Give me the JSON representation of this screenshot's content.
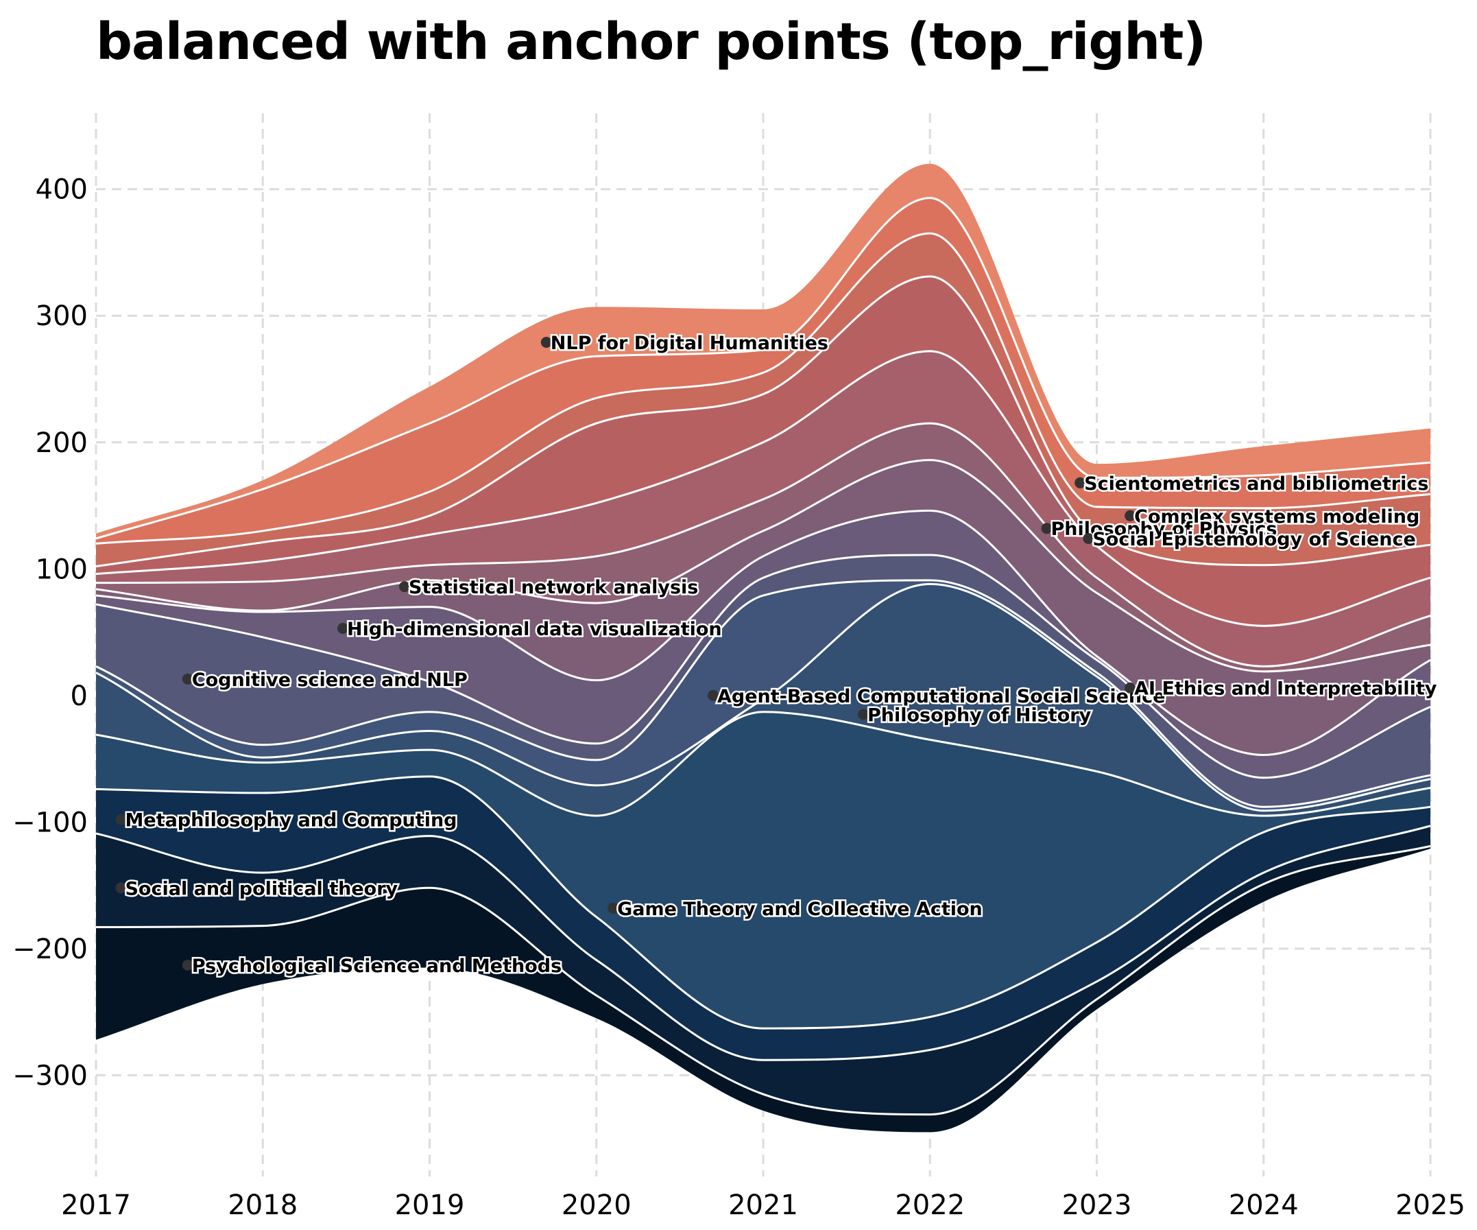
{
  "chart_data": {
    "type": "area",
    "title": "balanced with anchor points (top_right)",
    "xlabel": "",
    "ylabel": "",
    "x": [
      2017,
      2018,
      2019,
      2020,
      2021,
      2022,
      2023,
      2024,
      2025
    ],
    "xlim": [
      2017,
      2025
    ],
    "ylim": [
      -380,
      460
    ],
    "yticks": [
      -300,
      -200,
      -100,
      0,
      100,
      200,
      300,
      400
    ],
    "grid": true,
    "boundaries": [
      [
        -272,
        -228,
        -215,
        -255,
        -328,
        -345,
        -248,
        -163,
        -121
      ],
      [
        -183,
        -182,
        -152,
        -237,
        -315,
        -331,
        -240,
        -149,
        -119
      ],
      [
        -109,
        -140,
        -111,
        -209,
        -288,
        -280,
        -226,
        -140,
        -103
      ],
      [
        -74,
        -77,
        -64,
        -175,
        -263,
        -254,
        -195,
        -108,
        -88
      ],
      [
        -31,
        -53,
        -43,
        -95,
        -13,
        -35,
        -60,
        -95,
        -73
      ],
      [
        18,
        -49,
        -28,
        -71,
        -3,
        88,
        15,
        -91,
        -66
      ],
      [
        23,
        -39,
        -13,
        -51,
        79,
        91,
        18,
        -88,
        -63
      ],
      [
        72,
        46,
        11,
        -38,
        93,
        111,
        28,
        -65,
        -9
      ],
      [
        79,
        66,
        70,
        12,
        110,
        146,
        31,
        -47,
        28
      ],
      [
        84,
        67,
        91,
        73,
        130,
        186,
        81,
        19,
        40
      ],
      [
        89,
        90,
        103,
        110,
        155,
        215,
        93,
        23,
        63
      ],
      [
        96,
        106,
        127,
        152,
        200,
        272,
        118,
        55,
        93
      ],
      [
        102,
        121,
        142,
        215,
        238,
        331,
        127,
        103,
        119
      ],
      [
        120,
        130,
        161,
        235,
        255,
        365,
        149,
        148,
        159
      ],
      [
        124,
        163,
        215,
        268,
        273,
        393,
        172,
        174,
        184
      ],
      [
        128,
        170,
        244,
        307,
        305,
        420,
        183,
        197,
        211
      ]
    ],
    "series_colors": [
      "#041424",
      "#0a2039",
      "#102e4f",
      "#264a6c",
      "#334f72",
      "#41557a",
      "#555879",
      "#695b79",
      "#7e5d77",
      "#8f5f72",
      "#a5606c",
      "#b76062",
      "#c86a5c",
      "#da725e",
      "#e68569",
      "#e89a73"
    ],
    "labels": [
      {
        "text": "NLP for Digital Humanities",
        "x": 2019.7,
        "y": 279
      },
      {
        "text": "Statistical network analysis",
        "x": 2018.85,
        "y": 86
      },
      {
        "text": "High-dimensional data visualization",
        "x": 2018.48,
        "y": 53
      },
      {
        "text": "Cognitive science and NLP",
        "x": 2017.55,
        "y": 13
      },
      {
        "text": "Metaphilosophy and Computing",
        "x": 2017.15,
        "y": -98
      },
      {
        "text": "Social and political theory",
        "x": 2017.15,
        "y": -152
      },
      {
        "text": "Psychological Science and Methods",
        "x": 2017.55,
        "y": -213
      },
      {
        "text": "Game Theory and Collective Action",
        "x": 2020.1,
        "y": -168
      },
      {
        "text": "Agent-Based Computational Social Science",
        "x": 2020.7,
        "y": 0
      },
      {
        "text": "Philosophy of History",
        "x": 2021.6,
        "y": -15
      },
      {
        "text": "Scientometrics and bibliometrics",
        "x": 2022.9,
        "y": 168
      },
      {
        "text": "Complex systems modeling",
        "x": 2023.2,
        "y": 142
      },
      {
        "text": "Philosophy of Physics",
        "x": 2022.7,
        "y": 132
      },
      {
        "text": "Social Epistemology of Science",
        "x": 2022.95,
        "y": 124
      },
      {
        "text": "AI Ethics and Interpretability",
        "x": 2023.2,
        "y": 6
      }
    ]
  }
}
